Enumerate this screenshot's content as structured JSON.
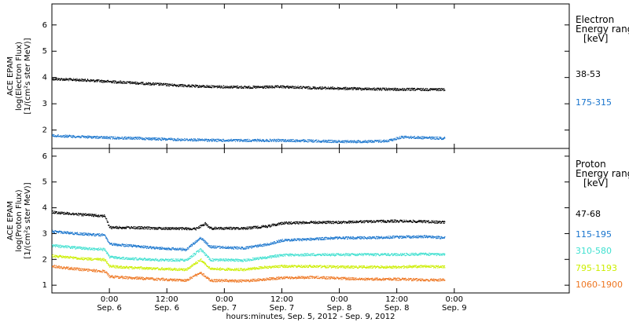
{
  "chart_data": {
    "type": "scatter",
    "x_axis": {
      "label": "hours:minutes, Sep.  5, 2012 - Sep.  9, 2012",
      "range_hours": [
        -12,
        96
      ],
      "ticks": [
        {
          "hour": 0,
          "time": "0:00",
          "day": "Sep. 6"
        },
        {
          "hour": 12,
          "time": "12:00",
          "day": "Sep. 6"
        },
        {
          "hour": 24,
          "time": "0:00",
          "day": "Sep. 7"
        },
        {
          "hour": 36,
          "time": "12:00",
          "day": "Sep. 7"
        },
        {
          "hour": 48,
          "time": "0:00",
          "day": "Sep. 8"
        },
        {
          "hour": 60,
          "time": "12:00",
          "day": "Sep. 8"
        },
        {
          "hour": 72,
          "time": "0:00",
          "day": "Sep. 9"
        }
      ]
    },
    "panels": [
      {
        "id": "electron",
        "ylabel": [
          "ACE EPAM",
          "log(Electron Flux)",
          "[1/(cm²s ster MeV)]"
        ],
        "ylim": [
          1.3,
          6.8
        ],
        "yticks": [
          2,
          3,
          4,
          5,
          6
        ],
        "legend_title": [
          "Electron",
          "Energy ranges",
          "[keV]"
        ],
        "series": [
          {
            "name": "38-53",
            "color": "#000000",
            "points": [
              [
                -12,
                3.96
              ],
              [
                -6,
                3.92
              ],
              [
                0,
                3.86
              ],
              [
                6,
                3.8
              ],
              [
                12,
                3.74
              ],
              [
                18,
                3.68
              ],
              [
                24,
                3.66
              ],
              [
                30,
                3.64
              ],
              [
                36,
                3.66
              ],
              [
                42,
                3.62
              ],
              [
                48,
                3.6
              ],
              [
                54,
                3.58
              ],
              [
                60,
                3.56
              ],
              [
                66,
                3.56
              ],
              [
                70,
                3.56
              ]
            ]
          },
          {
            "name": "175-315",
            "color": "#1874cd",
            "points": [
              [
                -12,
                1.8
              ],
              [
                -6,
                1.76
              ],
              [
                0,
                1.72
              ],
              [
                6,
                1.7
              ],
              [
                12,
                1.66
              ],
              [
                18,
                1.64
              ],
              [
                24,
                1.62
              ],
              [
                30,
                1.62
              ],
              [
                36,
                1.62
              ],
              [
                42,
                1.6
              ],
              [
                48,
                1.58
              ],
              [
                54,
                1.58
              ],
              [
                58,
                1.6
              ],
              [
                61,
                1.75
              ],
              [
                66,
                1.72
              ],
              [
                70,
                1.7
              ]
            ]
          }
        ]
      },
      {
        "id": "proton",
        "ylabel": [
          "ACE EPAM",
          "log(Proton Flux)",
          "[1/(cm²s ster MeV)]"
        ],
        "ylim": [
          0.7,
          6.3
        ],
        "yticks": [
          1,
          2,
          3,
          4,
          5,
          6
        ],
        "legend_title": [
          "Proton",
          "Energy ranges",
          "[keV]"
        ],
        "series": [
          {
            "name": "47-68",
            "color": "#000000",
            "points": [
              [
                -12,
                3.85
              ],
              [
                -6,
                3.75
              ],
              [
                -1,
                3.7
              ],
              [
                0,
                3.25
              ],
              [
                4,
                3.25
              ],
              [
                10,
                3.22
              ],
              [
                18,
                3.2
              ],
              [
                20,
                3.4
              ],
              [
                21,
                3.22
              ],
              [
                28,
                3.22
              ],
              [
                33,
                3.3
              ],
              [
                36,
                3.42
              ],
              [
                42,
                3.45
              ],
              [
                48,
                3.45
              ],
              [
                54,
                3.48
              ],
              [
                60,
                3.5
              ],
              [
                66,
                3.48
              ],
              [
                70,
                3.45
              ]
            ]
          },
          {
            "name": "115-195",
            "color": "#1874cd",
            "points": [
              [
                -12,
                3.1
              ],
              [
                -6,
                3.0
              ],
              [
                -1,
                2.95
              ],
              [
                0,
                2.6
              ],
              [
                4,
                2.55
              ],
              [
                10,
                2.45
              ],
              [
                16,
                2.4
              ],
              [
                19,
                2.85
              ],
              [
                21,
                2.5
              ],
              [
                28,
                2.45
              ],
              [
                33,
                2.6
              ],
              [
                36,
                2.75
              ],
              [
                42,
                2.8
              ],
              [
                48,
                2.85
              ],
              [
                54,
                2.85
              ],
              [
                60,
                2.88
              ],
              [
                66,
                2.9
              ],
              [
                70,
                2.85
              ]
            ]
          },
          {
            "name": "310-580",
            "color": "#40e0d0",
            "points": [
              [
                -12,
                2.55
              ],
              [
                -6,
                2.45
              ],
              [
                -1,
                2.4
              ],
              [
                0,
                2.1
              ],
              [
                4,
                2.05
              ],
              [
                10,
                2.0
              ],
              [
                16,
                1.98
              ],
              [
                19,
                2.4
              ],
              [
                21,
                2.0
              ],
              [
                28,
                1.98
              ],
              [
                33,
                2.1
              ],
              [
                36,
                2.18
              ],
              [
                42,
                2.2
              ],
              [
                48,
                2.2
              ],
              [
                54,
                2.2
              ],
              [
                60,
                2.2
              ],
              [
                66,
                2.22
              ],
              [
                70,
                2.2
              ]
            ]
          },
          {
            "name": "795-1193",
            "color": "#ccee00",
            "points": [
              [
                -12,
                2.15
              ],
              [
                -6,
                2.05
              ],
              [
                -1,
                2.0
              ],
              [
                0,
                1.75
              ],
              [
                4,
                1.7
              ],
              [
                10,
                1.65
              ],
              [
                16,
                1.62
              ],
              [
                19,
                2.0
              ],
              [
                21,
                1.65
              ],
              [
                28,
                1.62
              ],
              [
                33,
                1.72
              ],
              [
                36,
                1.75
              ],
              [
                42,
                1.75
              ],
              [
                48,
                1.72
              ],
              [
                54,
                1.72
              ],
              [
                60,
                1.72
              ],
              [
                66,
                1.75
              ],
              [
                70,
                1.72
              ]
            ]
          },
          {
            "name": "1060-1900",
            "color": "#ee7621",
            "points": [
              [
                -12,
                1.75
              ],
              [
                -6,
                1.62
              ],
              [
                -1,
                1.55
              ],
              [
                0,
                1.35
              ],
              [
                4,
                1.3
              ],
              [
                10,
                1.25
              ],
              [
                16,
                1.2
              ],
              [
                19,
                1.5
              ],
              [
                21,
                1.2
              ],
              [
                28,
                1.18
              ],
              [
                33,
                1.25
              ],
              [
                36,
                1.3
              ],
              [
                42,
                1.32
              ],
              [
                48,
                1.28
              ],
              [
                54,
                1.25
              ],
              [
                60,
                1.25
              ],
              [
                66,
                1.22
              ],
              [
                70,
                1.22
              ]
            ]
          }
        ]
      }
    ]
  }
}
